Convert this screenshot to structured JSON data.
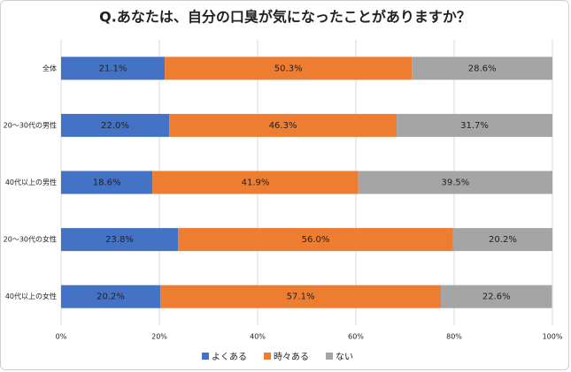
{
  "chart_data": {
    "type": "stacked-bar-horizontal",
    "title": "Q.あなたは、自分の口臭が気になったことがありますか？",
    "categories": [
      "全体",
      "20～30代の男性",
      "40代以上の男性",
      "20～30代の女性",
      "40代以上の女性"
    ],
    "series": [
      {
        "name": "よくある",
        "color": "#4472c4",
        "values": [
          21.1,
          22.0,
          18.6,
          23.8,
          20.2
        ],
        "value_labels": [
          "21.1%",
          "22.0%",
          "18.6%",
          "23.8%",
          "20.2%"
        ]
      },
      {
        "name": "時々ある",
        "color": "#ed7d31",
        "values": [
          50.3,
          46.3,
          41.9,
          56.0,
          57.1
        ],
        "value_labels": [
          "50.3%",
          "46.3%",
          "41.9%",
          "56.0%",
          "57.1%"
        ]
      },
      {
        "name": "ない",
        "color": "#a5a5a5",
        "values": [
          28.6,
          31.7,
          39.5,
          20.2,
          22.6
        ],
        "value_labels": [
          "28.6%",
          "31.7%",
          "39.5%",
          "20.2%",
          "22.6%"
        ]
      }
    ],
    "xlim": [
      0,
      100
    ],
    "xticks": [
      {
        "value": 0,
        "label": "0%"
      },
      {
        "value": 20,
        "label": "20%"
      },
      {
        "value": 40,
        "label": "40%"
      },
      {
        "value": 60,
        "label": "60%"
      },
      {
        "value": 80,
        "label": "80%"
      },
      {
        "value": 100,
        "label": "100%"
      }
    ],
    "grid": true,
    "legend": "bottom"
  }
}
